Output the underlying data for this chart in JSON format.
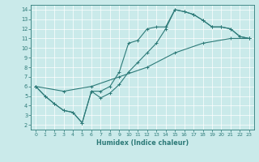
{
  "xlabel": "Humidex (Indice chaleur)",
  "bg_color": "#caeaea",
  "line_color": "#2d7a78",
  "grid_color": "#b8d8d8",
  "xlim": [
    -0.5,
    23.5
  ],
  "ylim": [
    1.5,
    14.5
  ],
  "xticks": [
    0,
    1,
    2,
    3,
    4,
    5,
    6,
    7,
    8,
    9,
    10,
    11,
    12,
    13,
    14,
    15,
    16,
    17,
    18,
    19,
    20,
    21,
    22,
    23
  ],
  "yticks": [
    2,
    3,
    4,
    5,
    6,
    7,
    8,
    9,
    10,
    11,
    12,
    13,
    14
  ],
  "line1_x": [
    0,
    1,
    2,
    3,
    4,
    5,
    6,
    7,
    8,
    9,
    10,
    11,
    12,
    13,
    14,
    15,
    16,
    17,
    18,
    19,
    20,
    21,
    22,
    23
  ],
  "line1_y": [
    6.0,
    5.0,
    4.2,
    3.5,
    3.3,
    2.2,
    5.5,
    4.8,
    5.3,
    6.2,
    7.5,
    8.5,
    9.5,
    10.5,
    12.0,
    14.0,
    13.8,
    13.5,
    12.9,
    12.2,
    12.2,
    12.0,
    11.2,
    11.0
  ],
  "line2_x": [
    0,
    1,
    2,
    3,
    4,
    5,
    6,
    7,
    8,
    9,
    10,
    11,
    12,
    13,
    14,
    15,
    16,
    17,
    18,
    19,
    20,
    21,
    22,
    23
  ],
  "line2_y": [
    6.0,
    5.0,
    4.2,
    3.5,
    3.3,
    2.2,
    5.5,
    5.5,
    6.0,
    7.5,
    10.5,
    10.8,
    12.0,
    12.2,
    12.2,
    14.0,
    13.8,
    13.5,
    12.9,
    12.2,
    12.2,
    12.0,
    11.2,
    11.0
  ],
  "line3_x": [
    0,
    3,
    6,
    9,
    12,
    15,
    18,
    21,
    23
  ],
  "line3_y": [
    6.0,
    5.5,
    6.0,
    7.0,
    8.0,
    9.5,
    10.5,
    11.0,
    11.0
  ]
}
